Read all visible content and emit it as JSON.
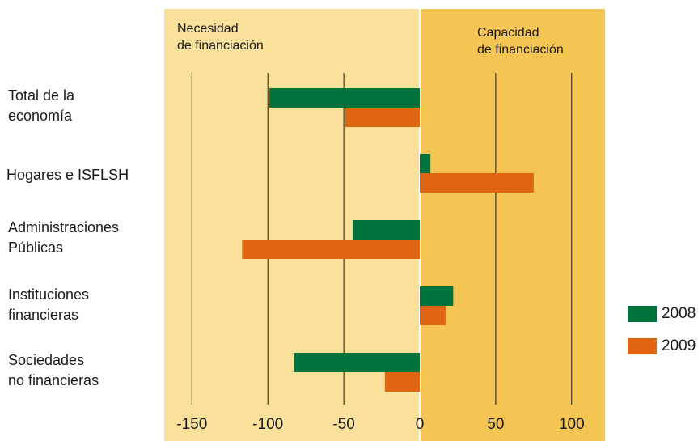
{
  "chart_data": {
    "type": "bar",
    "orientation": "horizontal",
    "categories": [
      "Total de la\neconomía",
      "Hogares e ISFLSH",
      "Administraciones\nPúblicas",
      "Instituciones\nfinancieras",
      "Sociedades\nno financieras"
    ],
    "series": [
      {
        "name": "2008",
        "color": "#00733c",
        "values": [
          -99,
          7,
          -44,
          22,
          -83
        ]
      },
      {
        "name": "2009",
        "color": "#e06614",
        "values": [
          -49,
          75,
          -117,
          17,
          -23
        ]
      }
    ],
    "xlim": [
      -170,
      122
    ],
    "xticks": [
      -150,
      -100,
      -50,
      0,
      50,
      100
    ],
    "grid": "vertical",
    "legend": "right",
    "annotations": {
      "negative_zone": "Necesidad\nde financiación",
      "positive_zone": "Capacidad\nde financiación"
    },
    "colors": {
      "negative_bg": "#f9e19b",
      "positive_bg": "#f4c553"
    }
  }
}
